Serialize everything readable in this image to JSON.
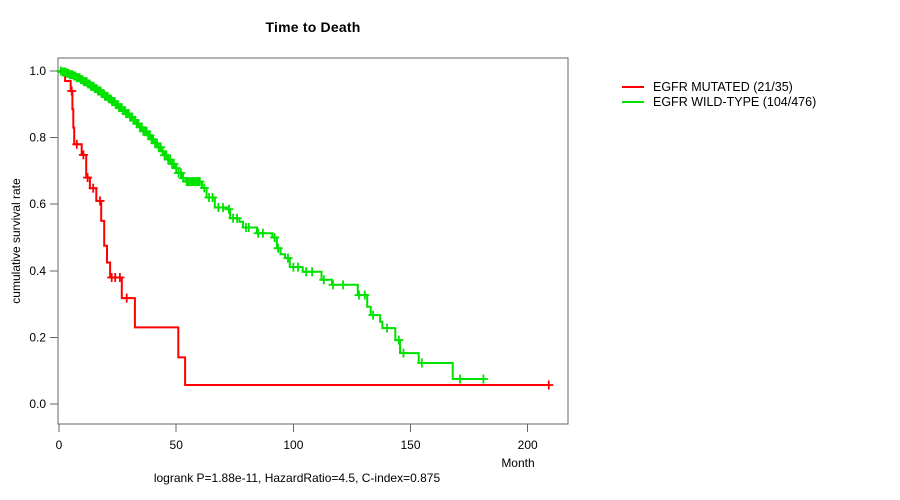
{
  "footer_note": "logrank P=1.88e-11, HazardRatio=4.5, C-index=0.875",
  "colors": {
    "mutated": "#ff0000",
    "wild_type": "#00e100",
    "axis": "#666666",
    "text": "#000000",
    "background": "#ffffff"
  },
  "chart_data": {
    "type": "line",
    "subtype": "kaplan-meier-step-curve",
    "title": "Time to Death",
    "xlabel": "Month",
    "ylabel": "cumulative survival rate",
    "xlim": [
      0,
      217
    ],
    "ylim": [
      0,
      1.04
    ],
    "x_ticks": [
      0,
      50,
      100,
      150,
      200
    ],
    "y_ticks": [
      1.0,
      0.8,
      0.6,
      0.4,
      0.2,
      0.0
    ],
    "grid": false,
    "legend_position": "right-outside",
    "series": [
      {
        "name": "EGFR MUTATED (21/35)",
        "color": "#ff0000",
        "events": 21,
        "n": 35,
        "steps": [
          [
            0,
            1.0
          ],
          [
            2.6,
            0.97
          ],
          [
            5,
            0.94
          ],
          [
            5.7,
            0.885
          ],
          [
            6.1,
            0.83
          ],
          [
            6.5,
            0.78
          ],
          [
            9.7,
            0.748
          ],
          [
            11.6,
            0.68
          ],
          [
            13.2,
            0.648
          ],
          [
            15.9,
            0.61
          ],
          [
            18,
            0.55
          ],
          [
            19.3,
            0.475
          ],
          [
            20.5,
            0.425
          ],
          [
            21.8,
            0.38
          ],
          [
            26.8,
            0.318
          ],
          [
            32.4,
            0.23
          ],
          [
            50.9,
            0.14
          ],
          [
            53.8,
            0.057
          ]
        ],
        "end_month": 209.5,
        "censor_months": [
          5.4,
          7.6,
          10.4,
          12.2,
          14.6,
          17.5,
          22.5,
          24,
          26,
          28.9,
          209
        ]
      },
      {
        "name": "EGFR WILD-TYPE (104/476)",
        "color": "#00e100",
        "events": 104,
        "n": 476,
        "steps": [
          [
            0,
            1.0
          ],
          [
            1.5,
            0.997
          ],
          [
            3,
            0.993
          ],
          [
            4.5,
            0.989
          ],
          [
            6,
            0.985
          ],
          [
            7.5,
            0.98
          ],
          [
            9,
            0.974
          ],
          [
            10.5,
            0.968
          ],
          [
            12,
            0.961
          ],
          [
            13.5,
            0.954
          ],
          [
            15,
            0.947
          ],
          [
            16.5,
            0.94
          ],
          [
            18,
            0.932
          ],
          [
            19.5,
            0.924
          ],
          [
            21,
            0.916
          ],
          [
            22.5,
            0.908
          ],
          [
            24,
            0.899
          ],
          [
            25.5,
            0.89
          ],
          [
            27,
            0.881
          ],
          [
            28.5,
            0.872
          ],
          [
            30,
            0.862
          ],
          [
            31.5,
            0.852
          ],
          [
            33,
            0.842
          ],
          [
            34.5,
            0.831
          ],
          [
            36,
            0.819
          ],
          [
            37.5,
            0.807
          ],
          [
            39,
            0.795
          ],
          [
            40.5,
            0.783
          ],
          [
            42,
            0.771
          ],
          [
            43.5,
            0.759
          ],
          [
            45,
            0.747
          ],
          [
            46.5,
            0.734
          ],
          [
            48,
            0.721
          ],
          [
            49.5,
            0.708
          ],
          [
            51,
            0.694
          ],
          [
            52.5,
            0.678
          ],
          [
            54,
            0.668
          ],
          [
            61,
            0.649
          ],
          [
            63,
            0.62
          ],
          [
            66.5,
            0.59
          ],
          [
            72,
            0.585
          ],
          [
            73,
            0.558
          ],
          [
            77,
            0.547
          ],
          [
            78.5,
            0.53
          ],
          [
            84.5,
            0.513
          ],
          [
            91,
            0.5
          ],
          [
            93,
            0.468
          ],
          [
            94.5,
            0.45
          ],
          [
            96.5,
            0.438
          ],
          [
            98.5,
            0.411
          ],
          [
            104,
            0.397
          ],
          [
            112,
            0.373
          ],
          [
            116.5,
            0.358
          ],
          [
            127.5,
            0.327
          ],
          [
            131.5,
            0.292
          ],
          [
            133,
            0.267
          ],
          [
            137,
            0.247
          ],
          [
            138,
            0.228
          ],
          [
            143.5,
            0.192
          ],
          [
            145.5,
            0.153
          ],
          [
            153.5,
            0.123
          ],
          [
            168,
            0.075
          ]
        ],
        "end_month": 182,
        "censor_months": [
          0.8,
          1.6,
          2.2,
          2.8,
          3.4,
          4,
          4.6,
          5.2,
          5.8,
          6.4,
          7,
          7.6,
          8.2,
          8.8,
          9.4,
          10,
          10.6,
          11.2,
          11.8,
          12.4,
          13,
          13.6,
          14.2,
          14.8,
          15.4,
          16,
          16.6,
          17.2,
          17.8,
          18.4,
          19,
          19.6,
          20.2,
          20.8,
          21.4,
          22,
          22.6,
          23.2,
          23.8,
          24.4,
          25,
          25.6,
          26.2,
          26.8,
          27.4,
          28,
          28.6,
          29.2,
          29.8,
          30.4,
          31.1,
          31.8,
          32.5,
          33.2,
          33.9,
          34.6,
          35.3,
          36,
          36.7,
          37.4,
          38.1,
          38.8,
          39.5,
          40.2,
          41,
          41.8,
          42.6,
          43.4,
          44.2,
          45,
          45.8,
          46.6,
          47.4,
          48.2,
          49,
          50,
          51,
          52,
          53,
          54.5,
          55.2,
          55.9,
          56.6,
          57.3,
          58,
          58.7,
          59.4,
          60.1,
          62,
          64,
          65.5,
          68,
          70,
          72.5,
          74.3,
          76,
          79.8,
          81,
          85,
          87,
          92,
          93.5,
          97.7,
          100,
          102,
          105.5,
          108,
          113,
          116.9,
          121.2,
          128,
          130.5,
          134,
          140,
          145,
          147,
          154.8,
          171.1,
          181.1
        ]
      }
    ]
  }
}
